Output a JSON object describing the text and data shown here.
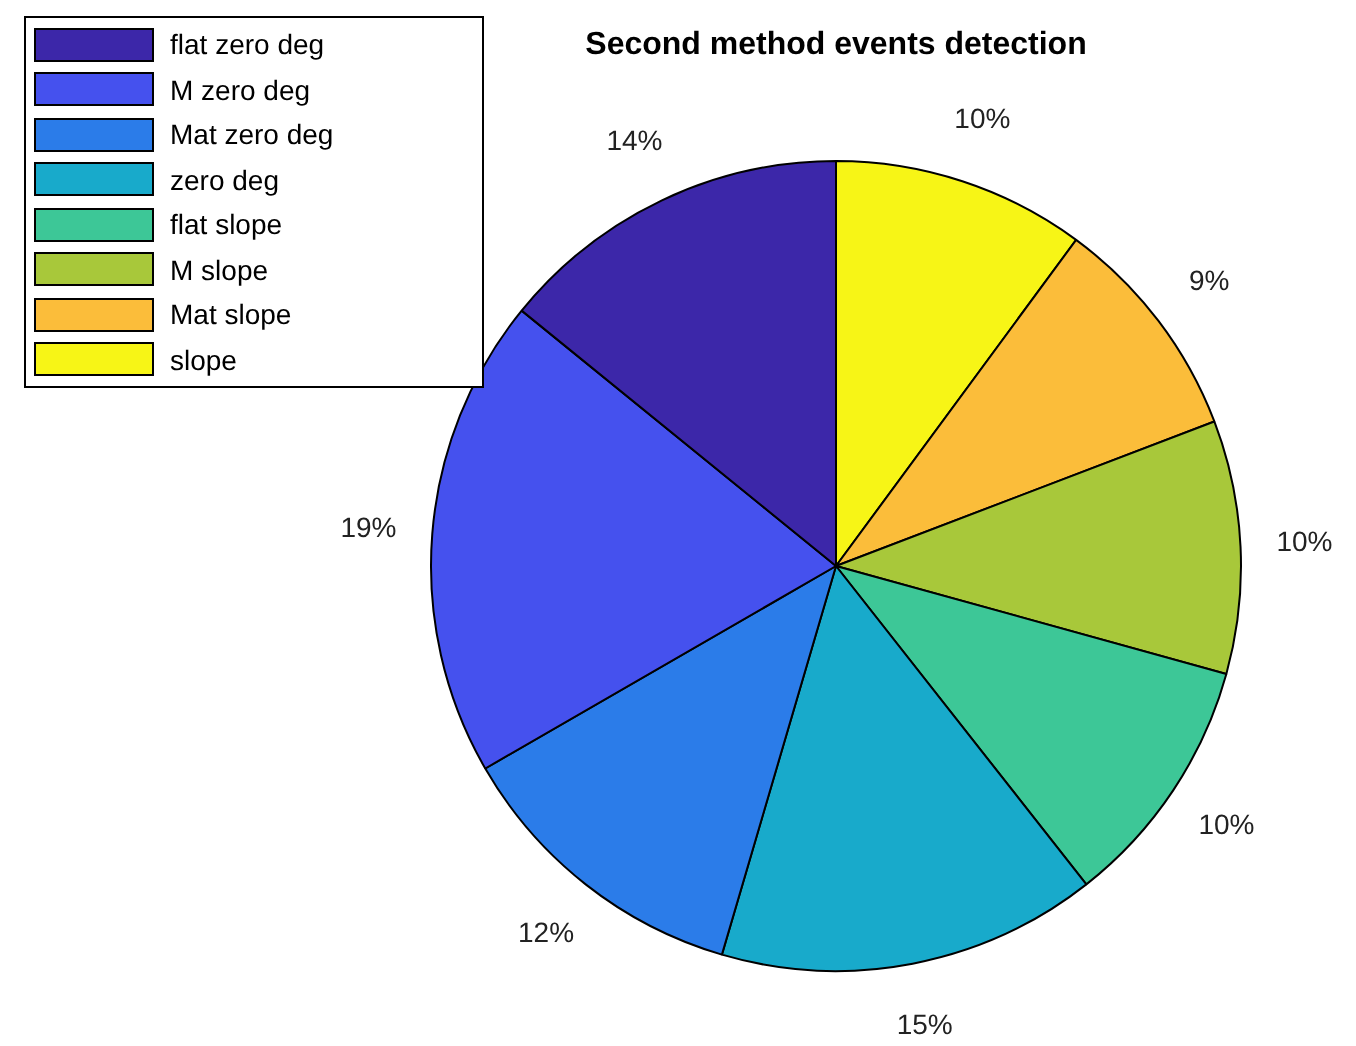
{
  "chart_data": {
    "type": "pie",
    "title": "Second method events detection",
    "categories": [
      "flat zero deg",
      "M zero deg",
      "Mat zero deg",
      "zero deg",
      "flat slope",
      "M slope",
      "Mat slope",
      "slope"
    ],
    "values": [
      14,
      19,
      12,
      15,
      10,
      10,
      9,
      10
    ],
    "value_labels": [
      "14%",
      "19%",
      "12%",
      "15%",
      "10%",
      "10%",
      "9%",
      "10%"
    ],
    "colors": [
      "#3c27a9",
      "#4551ee",
      "#2b7ce9",
      "#18aacb",
      "#3dc797",
      "#a8c83a",
      "#fbbd3a",
      "#f7f516"
    ],
    "legend": "top left"
  }
}
